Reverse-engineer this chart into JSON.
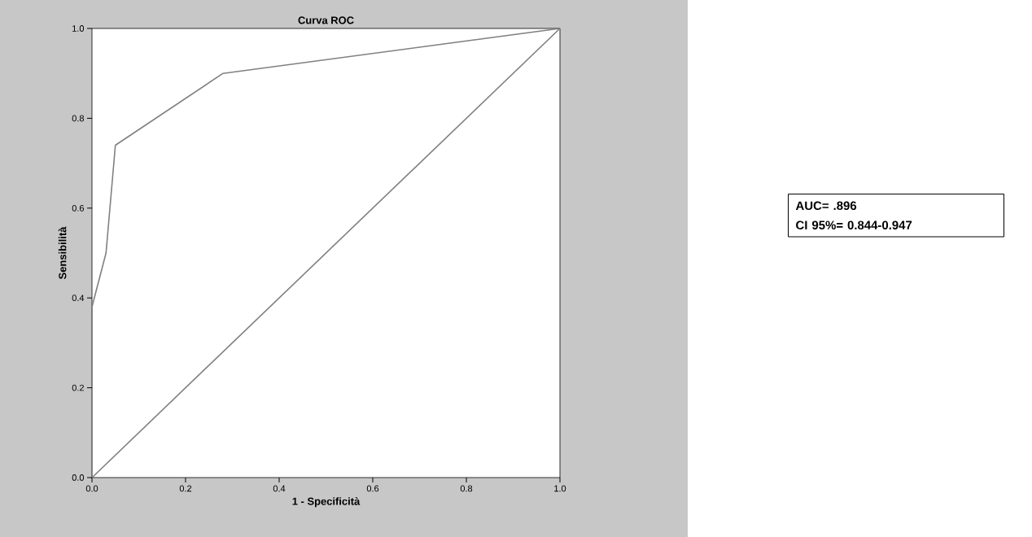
{
  "chart_data": {
    "type": "line",
    "title": "Curva ROC",
    "xlabel": "1 - Specificità",
    "ylabel": "Sensibilità",
    "series": [
      {
        "color": "#808080",
        "x": [
          0,
          0,
          0.03,
          0.05,
          0.28,
          1
        ],
        "values": [
          0,
          0.38,
          0.5,
          0.74,
          0.9,
          1
        ]
      },
      {
        "color": "#808080",
        "x": [
          0,
          1
        ],
        "values": [
          0,
          1
        ]
      }
    ],
    "xlim": [
      0,
      1
    ],
    "ylim": [
      0,
      1
    ],
    "xticks": [
      {
        "value": 0,
        "label": "0.0"
      },
      0.2,
      0.4,
      0.6,
      0.8,
      {
        "value": 1,
        "label": "1.0"
      }
    ],
    "yticks": [
      {
        "value": 0,
        "label": "0.0"
      },
      0.2,
      0.4,
      0.6,
      0.8,
      {
        "value": 1,
        "label": "1.0"
      }
    ],
    "grid": false,
    "legend": false,
    "marker": "none",
    "annotations": [
      "AUC= .896",
      "CI 95%= 0.844-0.947"
    ]
  }
}
